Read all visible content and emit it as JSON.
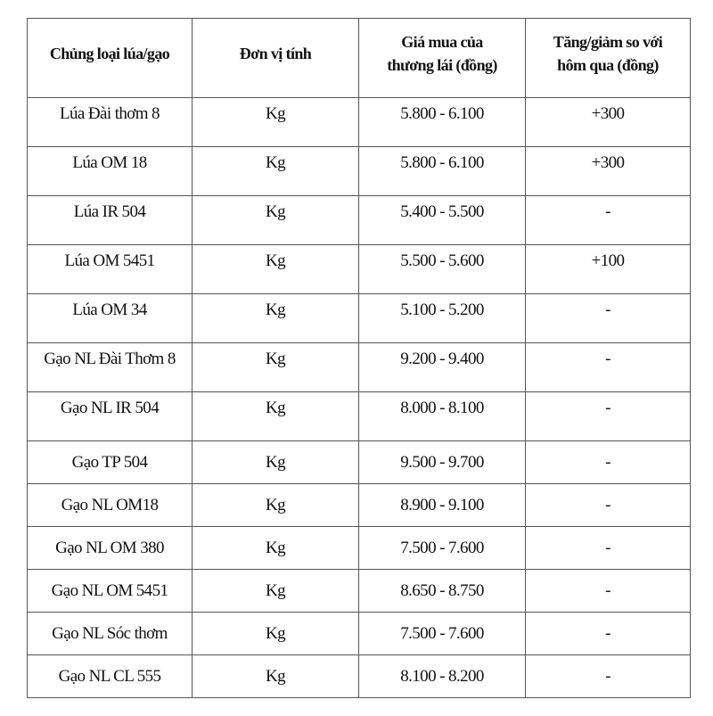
{
  "table": {
    "headers": [
      "Chủng loại lúa/gạo",
      "Đơn vị tính",
      "Giá mua của thương lái (đồng)",
      "Tăng/giảm so với hôm qua (đồng)"
    ],
    "rows": [
      [
        "Lúa Đài thơm 8",
        "Kg",
        "5.800 - 6.100",
        "+300"
      ],
      [
        "Lúa OM 18",
        "Kg",
        "5.800 - 6.100",
        "+300"
      ],
      [
        "Lúa IR 504",
        "Kg",
        "5.400 - 5.500",
        "-"
      ],
      [
        "Lúa OM 5451",
        "Kg",
        "5.500 - 5.600",
        "+100"
      ],
      [
        "Lúa OM 34",
        "Kg",
        "5.100 - 5.200",
        "-"
      ],
      [
        "Gạo NL Đài Thơm 8",
        "Kg",
        "9.200 - 9.400",
        "-"
      ],
      [
        "Gạo NL IR 504",
        "Kg",
        "8.000 - 8.100",
        "-"
      ],
      [
        "Gạo TP 504",
        "Kg",
        "9.500 - 9.700",
        "-"
      ],
      [
        "Gạo NL OM18",
        "Kg",
        "8.900 - 9.100",
        "-"
      ],
      [
        "Gạo NL OM 380",
        "Kg",
        "7.500 - 7.600",
        "-"
      ],
      [
        "Gạo NL OM 5451",
        "Kg",
        "8.650 - 8.750",
        "-"
      ],
      [
        "Gạo NL Sóc thơm",
        "Kg",
        "7.500 - 7.600",
        "-"
      ],
      [
        "Gạo NL CL 555",
        "Kg",
        "8.100 - 8.200",
        "-"
      ]
    ]
  }
}
